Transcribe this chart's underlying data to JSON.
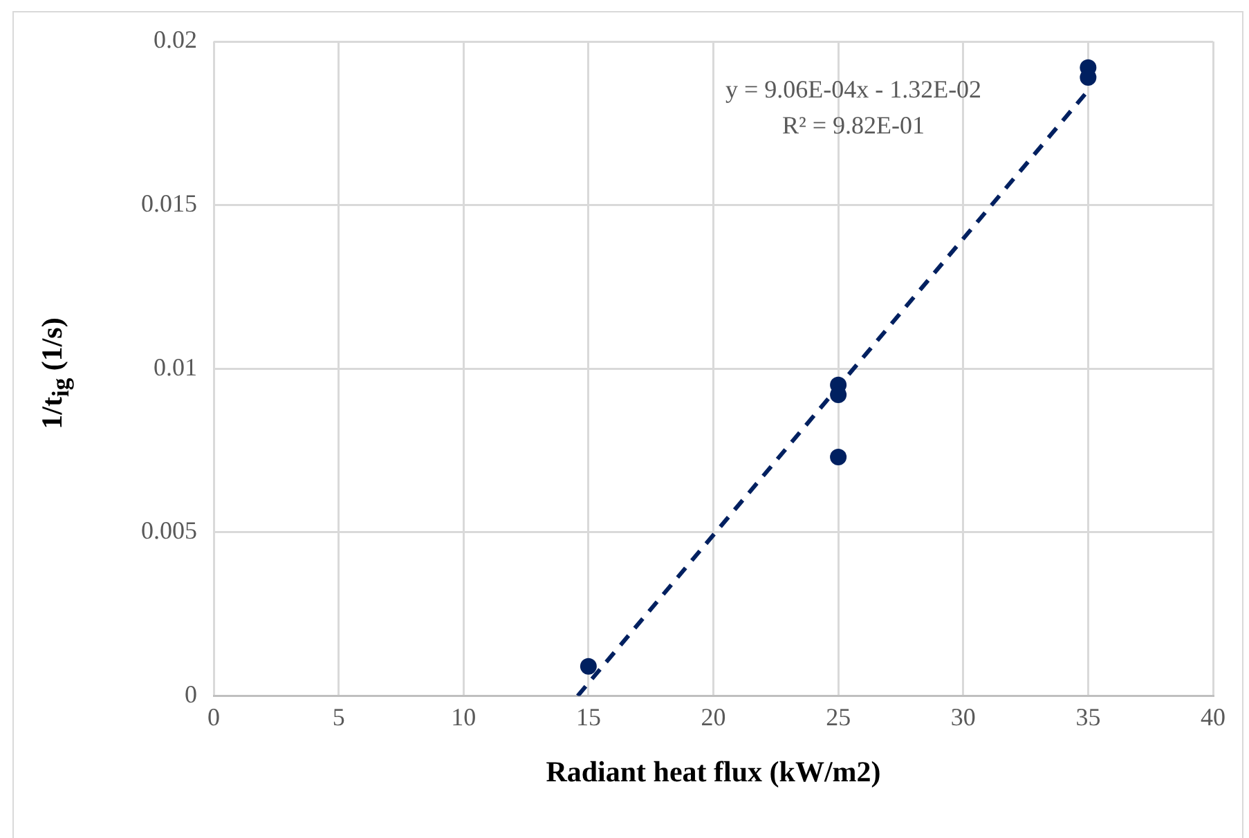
{
  "chart_data": {
    "type": "scatter",
    "xlabel": "Radiant heat flux (kW/m2)",
    "ylabel": "1/t$_{ig}$ (1/s)",
    "xlim": [
      0,
      40
    ],
    "xticks": [
      0,
      5,
      10,
      15,
      20,
      25,
      30,
      35,
      40
    ],
    "ylim": [
      0,
      0.02
    ],
    "yticks": [
      0,
      0.005,
      0.01,
      0.015,
      0.02
    ],
    "grid": true,
    "legend": false,
    "marker": "circle",
    "series": [
      {
        "color": "#002060",
        "x": [
          15,
          25,
          25,
          25,
          35,
          35
        ],
        "values": [
          0.0009,
          0.0095,
          0.0092,
          0.0073,
          0.0192,
          0.0189
        ]
      },
      {
        "type": "line",
        "color": "#002060",
        "line_style": "dashed",
        "marker": "none",
        "x": [
          14.57,
          35
        ],
        "values": [
          0,
          0.0185
        ]
      }
    ],
    "annotations": [
      "y = 9.06E-04x - 1.32E-02",
      "R² = 9.82E-01"
    ]
  }
}
